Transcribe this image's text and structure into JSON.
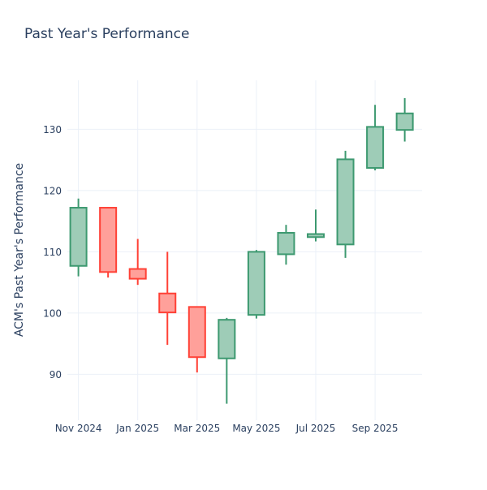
{
  "title": "Past Year's Performance",
  "chart_data": {
    "type": "candlestick",
    "title": "Past Year's Performance",
    "xlabel": "",
    "ylabel": "ACM's Past Year's Performance",
    "x": [
      "Nov 2024",
      "Dec 2024",
      "Jan 2025",
      "Feb 2025",
      "Mar 2025",
      "Apr 2025",
      "May 2025",
      "Jun 2025",
      "Jul 2025",
      "Aug 2025",
      "Sep 2025",
      "Oct 2025"
    ],
    "open": [
      107.7,
      117.2,
      107.2,
      103.2,
      101.0,
      92.6,
      99.7,
      109.6,
      112.4,
      111.2,
      123.7,
      129.9
    ],
    "high": [
      118.7,
      117.3,
      112.1,
      110.0,
      101.0,
      99.2,
      110.3,
      114.4,
      116.9,
      126.5,
      134.0,
      135.1
    ],
    "low": [
      106.0,
      105.8,
      104.6,
      94.8,
      90.3,
      85.2,
      99.1,
      107.9,
      111.7,
      109.0,
      123.3,
      128.0
    ],
    "close": [
      117.2,
      106.7,
      105.6,
      100.1,
      92.8,
      98.9,
      110.0,
      113.1,
      112.9,
      125.1,
      130.4,
      132.6
    ],
    "x_tick_indices": [
      0,
      2,
      4,
      6,
      8,
      10
    ],
    "x_tick_labels": [
      "Nov 2024",
      "Jan 2025",
      "Mar 2025",
      "May 2025",
      "Jul 2025",
      "Sep 2025"
    ],
    "y_ticks": [
      90,
      100,
      110,
      120,
      130
    ],
    "ylim": [
      82.5,
      138
    ],
    "grid": true,
    "legend": false,
    "colors": {
      "increasing_line": "#3D9970",
      "increasing_fill": "#9ECCB7",
      "decreasing_line": "#FF4136",
      "decreasing_fill": "#FFA09A",
      "grid": "#EBF0F8",
      "text": "#2a3f5f",
      "background": "#FFFFFF"
    }
  }
}
